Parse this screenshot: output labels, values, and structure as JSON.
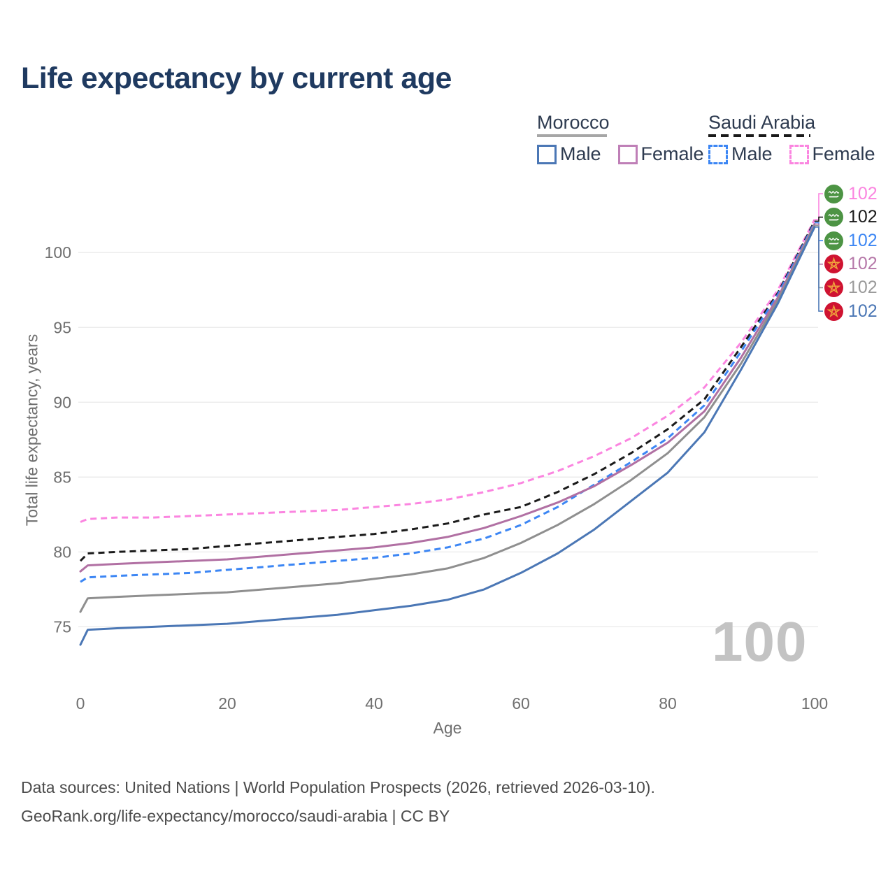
{
  "title": {
    "text": "Life expectancy by current age",
    "color": "#1f3a60"
  },
  "legend": {
    "groups": [
      {
        "name": "Morocco",
        "underline_style": "solid",
        "underline_color": "#a6a6a6",
        "items": [
          {
            "label": "Male",
            "color": "#4b77b5",
            "dashed": false
          },
          {
            "label": "Female",
            "color": "#bf7fb7",
            "dashed": false
          }
        ]
      },
      {
        "name": "Saudi Arabia",
        "underline_style": "dashed",
        "underline_color": "#1a1a1a",
        "items": [
          {
            "label": "Male",
            "color": "#3c86f4",
            "dashed": true
          },
          {
            "label": "Female",
            "color": "#fb85e0",
            "dashed": true
          }
        ]
      }
    ],
    "text_color": "#2e3b50"
  },
  "chart_data": {
    "type": "line",
    "title": "Life expectancy by current age",
    "xlabel": "Age",
    "ylabel": "Total life expectancy, years",
    "xticks": [
      0,
      20,
      40,
      60,
      80,
      100
    ],
    "yticks": [
      75,
      80,
      85,
      90,
      95,
      100
    ],
    "xlim": [
      0,
      100
    ],
    "ylim": [
      71,
      103
    ],
    "grid": "horizontal-only",
    "legend_position": "top-right",
    "x": [
      0,
      1,
      5,
      10,
      15,
      20,
      25,
      30,
      35,
      40,
      45,
      50,
      55,
      60,
      65,
      70,
      75,
      80,
      85,
      90,
      95,
      100
    ],
    "series": [
      {
        "name": "Morocco Male",
        "color": "#4b77b5",
        "dash": false,
        "values": [
          73.8,
          74.8,
          74.9,
          75.0,
          75.1,
          75.2,
          75.4,
          75.6,
          75.8,
          76.1,
          76.4,
          76.8,
          77.5,
          78.6,
          79.9,
          81.5,
          83.4,
          85.3,
          88.0,
          92.2,
          96.6,
          101.7
        ]
      },
      {
        "name": "Morocco Female",
        "color": "#b170a3",
        "dash": false,
        "values": [
          78.7,
          79.1,
          79.2,
          79.3,
          79.4,
          79.5,
          79.7,
          79.9,
          80.1,
          80.3,
          80.6,
          81.0,
          81.6,
          82.4,
          83.3,
          84.4,
          85.8,
          87.3,
          89.4,
          93.0,
          97.0,
          101.9
        ]
      },
      {
        "name": "Morocco Both Sexes",
        "color": "#8f8f8f",
        "dash": false,
        "values": [
          76.0,
          76.9,
          77.0,
          77.1,
          77.2,
          77.3,
          77.5,
          77.7,
          77.9,
          78.2,
          78.5,
          78.9,
          79.6,
          80.6,
          81.8,
          83.2,
          84.8,
          86.6,
          89.0,
          92.6,
          96.8,
          101.8
        ]
      },
      {
        "name": "Saudi Arabia Male",
        "color": "#3c86f4",
        "dash": true,
        "values": [
          78.0,
          78.3,
          78.4,
          78.5,
          78.6,
          78.8,
          79.0,
          79.2,
          79.4,
          79.6,
          79.9,
          80.3,
          80.9,
          81.8,
          83.0,
          84.5,
          86.0,
          87.6,
          89.8,
          93.4,
          97.2,
          102.0
        ]
      },
      {
        "name": "Saudi Arabia Female",
        "color": "#fb85e0",
        "dash": true,
        "values": [
          82.0,
          82.2,
          82.3,
          82.3,
          82.4,
          82.5,
          82.6,
          82.7,
          82.8,
          83.0,
          83.2,
          83.5,
          84.0,
          84.6,
          85.4,
          86.4,
          87.6,
          89.1,
          91.0,
          94.0,
          97.5,
          102.2
        ]
      },
      {
        "name": "Saudi Arabia Both Sexes",
        "color": "#1a1a1a",
        "dash": true,
        "values": [
          79.4,
          79.9,
          80.0,
          80.1,
          80.2,
          80.4,
          80.6,
          80.8,
          81.0,
          81.2,
          81.5,
          81.9,
          82.5,
          83.0,
          84.0,
          85.2,
          86.6,
          88.2,
          90.2,
          93.7,
          97.3,
          102.1
        ]
      }
    ],
    "end_labels": [
      {
        "flag": "saudi-arabia",
        "value": "102",
        "color": "#fb85e0",
        "series": 4
      },
      {
        "flag": "saudi-arabia",
        "value": "102",
        "color": "#1a1a1a",
        "series": 5
      },
      {
        "flag": "saudi-arabia",
        "value": "102",
        "color": "#3c86f4",
        "series": 3
      },
      {
        "flag": "morocco",
        "value": "102",
        "color": "#b577a8",
        "series": 1
      },
      {
        "flag": "morocco",
        "value": "102",
        "color": "#9a9a9a",
        "series": 2
      },
      {
        "flag": "morocco",
        "value": "102",
        "color": "#4b77b5",
        "series": 0
      }
    ],
    "axis_text_color": "#6f6f6f",
    "gridline_color": "#e9e9e9"
  },
  "watermark": {
    "text": "100"
  },
  "footer": {
    "line1": "Data sources: United Nations | World Population Prospects (2026, retrieved 2026-03-10).",
    "line2": "GeoRank.org/life-expectancy/morocco/saudi-arabia | CC BY"
  },
  "flag_colors": {
    "saudi_green": "#4d9444",
    "morocco_red": "#cf1331",
    "morocco_star": "#efa33c"
  }
}
